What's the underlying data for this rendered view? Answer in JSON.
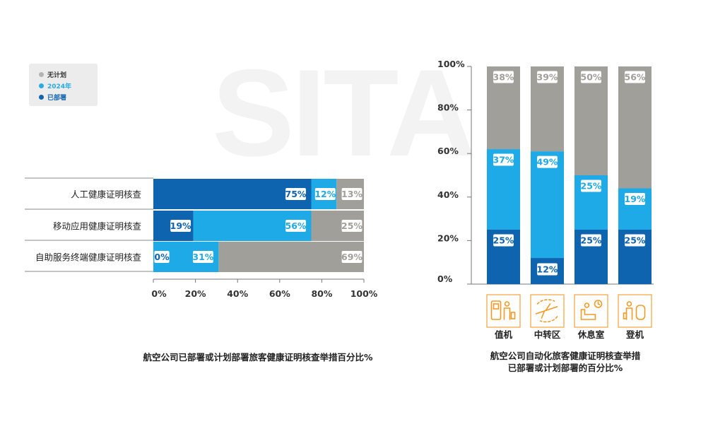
{
  "watermark": "SITA",
  "legend": {
    "items": [
      {
        "label": "无计划",
        "color": "#b3b3b3"
      },
      {
        "label": "2024年",
        "color": "#29abe2"
      },
      {
        "label": "已部署",
        "color": "#0f64b0"
      }
    ]
  },
  "colors": {
    "deployed": "#0f64b0",
    "plan2024": "#1eaae7",
    "noplan": "#a09f9a"
  },
  "icons": [
    "check-in-kiosk-icon",
    "transfer-airplane-icon",
    "lounge-chair-icon",
    "boarding-gate-icon"
  ],
  "chart_data": [
    {
      "type": "bar",
      "orientation": "horizontal-stacked",
      "title": "航空公司已部署或计划部署旅客健康证明核查举措百分比%",
      "categories": [
        "人工健康证明核查",
        "移动应用健康证明核查",
        "自助服务终端健康证明核查"
      ],
      "series": [
        {
          "name": "已部署",
          "values": [
            75,
            19,
            0
          ]
        },
        {
          "name": "2024年",
          "values": [
            12,
            56,
            31
          ]
        },
        {
          "name": "无计划",
          "values": [
            13,
            25,
            69
          ]
        }
      ],
      "xticks": [
        "0%",
        "20%",
        "40%",
        "60%",
        "80%",
        "100%"
      ],
      "xlim": [
        0,
        100
      ]
    },
    {
      "type": "bar",
      "orientation": "vertical-stacked",
      "title": "航空公司自动化旅客健康证明核查举措已部署或计划部署的百分比%",
      "categories": [
        "值机",
        "中转区",
        "休息室",
        "登机"
      ],
      "series": [
        {
          "name": "已部署",
          "values": [
            25,
            12,
            25,
            25
          ]
        },
        {
          "name": "2024年",
          "values": [
            37,
            49,
            25,
            19
          ]
        },
        {
          "name": "无计划",
          "values": [
            38,
            39,
            50,
            56
          ]
        }
      ],
      "yticks": [
        "100%",
        "80%",
        "60%",
        "40%",
        "20%",
        "0%"
      ],
      "ylim": [
        0,
        100
      ]
    }
  ],
  "captions": {
    "left": "航空公司已部署或计划部署旅客健康证明核查举措百分比%",
    "right_line1": "航空公司自动化旅客健康证明核查举措",
    "right_line2": "已部署或计划部署的百分比%"
  }
}
